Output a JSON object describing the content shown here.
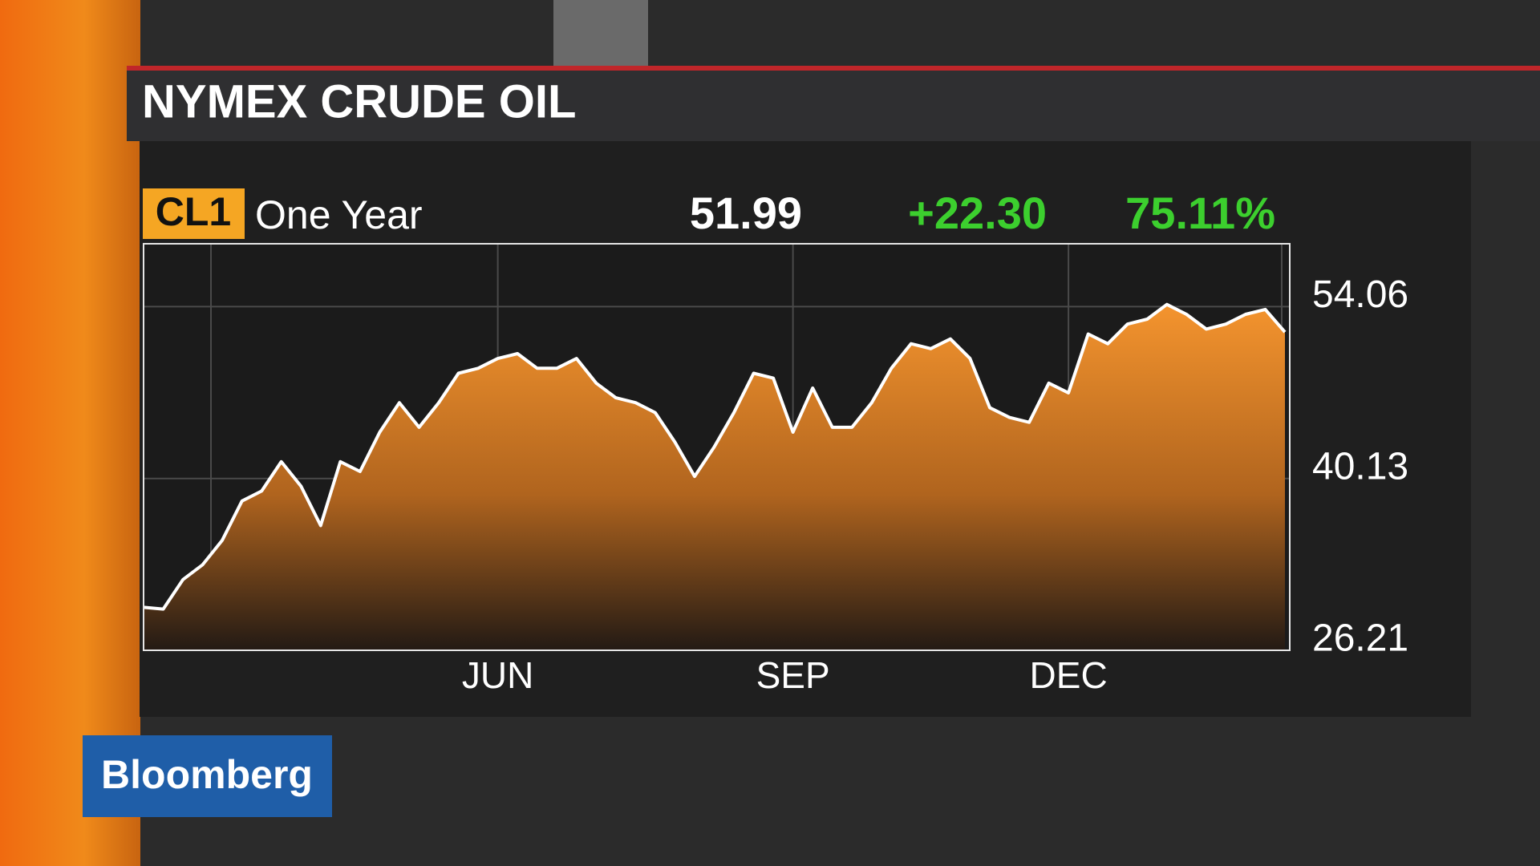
{
  "chart_data": {
    "type": "line",
    "title": "NYMEX CRUDE OIL",
    "ticker": "CL1",
    "period": "One Year",
    "last": "51.99",
    "change": "+22.30",
    "change_pct": "75.11%",
    "branding": "Bloomberg",
    "categories": [
      null,
      null,
      null,
      null,
      null,
      null,
      null,
      null,
      null,
      null,
      null,
      null,
      null,
      null,
      null,
      null,
      null,
      null,
      "JUN",
      null,
      null,
      null,
      null,
      null,
      null,
      null,
      null,
      null,
      null,
      null,
      null,
      null,
      null,
      "SEP",
      null,
      null,
      null,
      null,
      null,
      null,
      null,
      null,
      null,
      null,
      null,
      null,
      null,
      "DEC",
      null,
      null,
      null,
      null,
      null,
      null,
      null,
      null,
      null,
      null,
      null
    ],
    "series": [
      {
        "name": "CL1",
        "color": "#ffffff",
        "values": [
          29.69,
          29.55,
          31.94,
          33.14,
          35.13,
          38.31,
          39.11,
          41.49,
          39.5,
          36.32,
          41.49,
          40.7,
          43.88,
          46.27,
          44.28,
          46.27,
          48.66,
          49.06,
          49.85,
          50.25,
          49.06,
          49.06,
          49.85,
          47.86,
          46.67,
          46.27,
          45.47,
          43.09,
          40.3,
          42.69,
          45.47,
          48.66,
          48.26,
          43.88,
          47.46,
          44.28,
          44.28,
          46.27,
          49.06,
          51.05,
          50.65,
          51.44,
          49.85,
          45.87,
          45.08,
          44.68,
          47.86,
          47.07,
          51.84,
          51.05,
          52.64,
          53.04,
          54.23,
          53.43,
          52.24,
          52.64,
          53.43,
          53.83,
          51.99
        ]
      }
    ],
    "ylim": [
      26.21,
      59.15
    ],
    "yticks": [
      26.21,
      40.13,
      54.06
    ],
    "grid": true
  }
}
